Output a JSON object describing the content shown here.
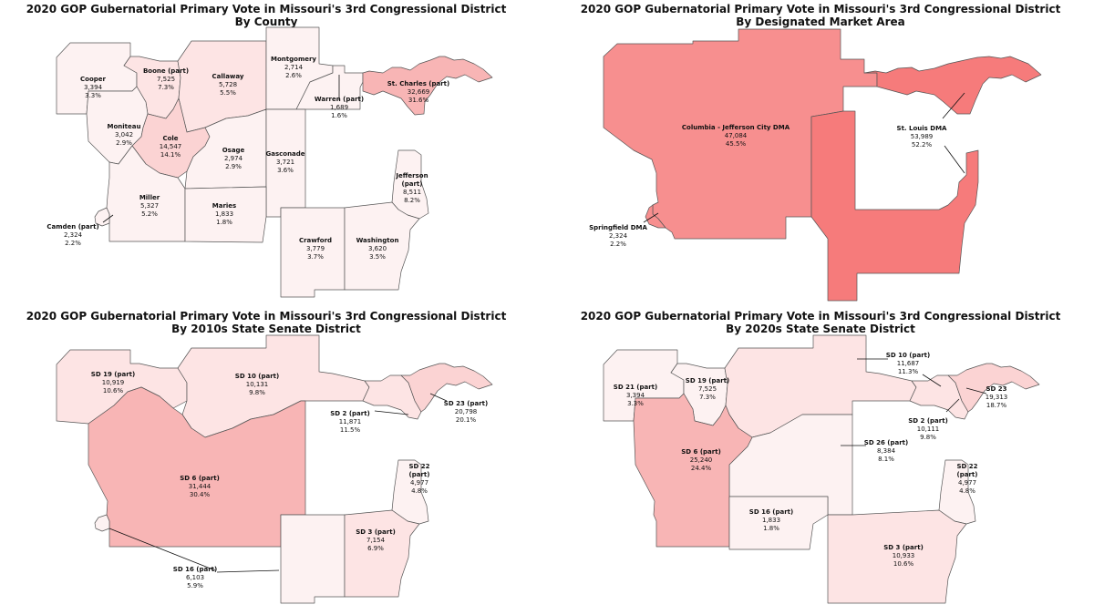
{
  "colors": {
    "c0": "#fdf2f2",
    "c1": "#fde4e4",
    "c2": "#fbd3d3",
    "c3": "#f8b5b5",
    "c4": "#f78f8f",
    "c5": "#f67b7b",
    "border": "#555555"
  },
  "maps": [
    {
      "title_line1": "2020 GOP Gubernatorial Primary Vote in Missouri's 3rd Congressional District",
      "title_line2": "By County",
      "labels": [
        {
          "name": "Cooper",
          "votes": "3,394",
          "pct": "3.3%"
        },
        {
          "name": "Boone (part)",
          "votes": "7,525",
          "pct": "7.3%"
        },
        {
          "name": "Callaway",
          "votes": "5,728",
          "pct": "5.5%"
        },
        {
          "name": "Montgomery",
          "votes": "2,714",
          "pct": "2.6%"
        },
        {
          "name": "St. Charles (part)",
          "votes": "32,669",
          "pct": "31.6%"
        },
        {
          "name": "Warren (part)",
          "votes": "1,689",
          "pct": "1.6%"
        },
        {
          "name": "Moniteau",
          "votes": "3,042",
          "pct": "2.9%"
        },
        {
          "name": "Cole",
          "votes": "14,547",
          "pct": "14.1%"
        },
        {
          "name": "Osage",
          "votes": "2,974",
          "pct": "2.9%"
        },
        {
          "name": "Gasconade",
          "votes": "3,721",
          "pct": "3.6%"
        },
        {
          "name": "Jefferson",
          "name2": "(part)",
          "votes": "8,511",
          "pct": "8.2%"
        },
        {
          "name": "Miller",
          "votes": "5,327",
          "pct": "5.2%"
        },
        {
          "name": "Maries",
          "votes": "1,833",
          "pct": "1.8%"
        },
        {
          "name": "Camden (part)",
          "votes": "2,324",
          "pct": "2.2%"
        },
        {
          "name": "Crawford",
          "votes": "3,779",
          "pct": "3.7%"
        },
        {
          "name": "Washington",
          "votes": "3,620",
          "pct": "3.5%"
        }
      ]
    },
    {
      "title_line1": "2020 GOP Gubernatorial Primary Vote in Missouri's 3rd Congressional District",
      "title_line2": "By Designated Market Area",
      "labels": [
        {
          "name": "Columbia - Jefferson City DMA",
          "votes": "47,084",
          "pct": "45.5%"
        },
        {
          "name": "St. Louis DMA",
          "votes": "53,989",
          "pct": "52.2%"
        },
        {
          "name": "Springfield DMA",
          "votes": "2,324",
          "pct": "2.2%"
        }
      ]
    },
    {
      "title_line1": "2020 GOP Gubernatorial Primary Vote in Missouri's 3rd Congressional District",
      "title_line2": "By 2010s State Senate District",
      "labels": [
        {
          "name": "SD 19 (part)",
          "votes": "10,919",
          "pct": "10.6%"
        },
        {
          "name": "SD 10 (part)",
          "votes": "10,131",
          "pct": "9.8%"
        },
        {
          "name": "SD 2 (part)",
          "votes": "11,871",
          "pct": "11.5%"
        },
        {
          "name": "SD 23 (part)",
          "votes": "20,798",
          "pct": "20.1%"
        },
        {
          "name": "SD 6 (part)",
          "votes": "31,444",
          "pct": "30.4%"
        },
        {
          "name": "SD 22",
          "name2": "(part)",
          "votes": "4,977",
          "pct": "4.8%"
        },
        {
          "name": "SD 3 (part)",
          "votes": "7,154",
          "pct": "6.9%"
        },
        {
          "name": "SD 16 (part)",
          "votes": "6,103",
          "pct": "5.9%"
        }
      ]
    },
    {
      "title_line1": "2020 GOP Gubernatorial Primary Vote in Missouri's 3rd Congressional District",
      "title_line2": "By 2020s State Senate District",
      "labels": [
        {
          "name": "SD 21 (part)",
          "votes": "3,394",
          "pct": "3.3%"
        },
        {
          "name": "SD 19 (part)",
          "votes": "7,525",
          "pct": "7.3%"
        },
        {
          "name": "SD 10 (part)",
          "votes": "11,687",
          "pct": "11.3%"
        },
        {
          "name": "SD 23",
          "votes": "19,313",
          "pct": "18.7%"
        },
        {
          "name": "SD 2 (part)",
          "votes": "10,111",
          "pct": "9.8%"
        },
        {
          "name": "SD 26 (part)",
          "votes": "8,384",
          "pct": "8.1%"
        },
        {
          "name": "SD 6 (part)",
          "votes": "25,240",
          "pct": "24.4%"
        },
        {
          "name": "SD 22",
          "name2": "(part)",
          "votes": "4,977",
          "pct": "4.8%"
        },
        {
          "name": "SD 16 (part)",
          "votes": "1,833",
          "pct": "1.8%"
        },
        {
          "name": "SD 3 (part)",
          "votes": "10,933",
          "pct": "10.6%"
        }
      ]
    }
  ]
}
